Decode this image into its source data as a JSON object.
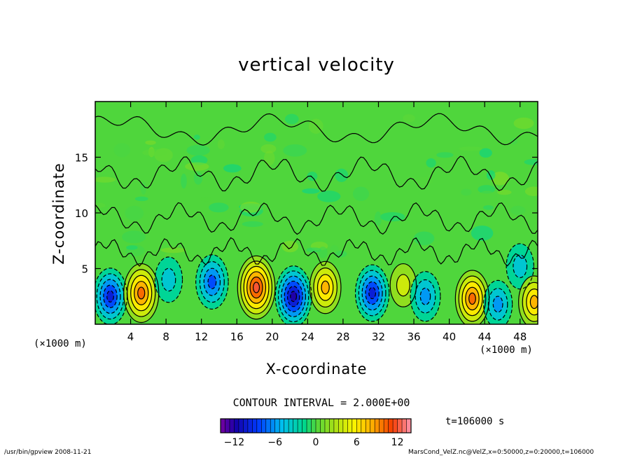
{
  "chart_data": {
    "type": "heatmap",
    "title": "vertical velocity",
    "xlabel": "X-coordinate",
    "ylabel": "Z-coordinate",
    "x_unit": "(×1000 m)",
    "y_unit": "(×1000 m)",
    "xlim": [
      0,
      50
    ],
    "ylim": [
      0,
      20
    ],
    "x_ticks": [
      4,
      8,
      12,
      16,
      20,
      24,
      28,
      32,
      36,
      40,
      44,
      48
    ],
    "y_ticks": [
      5,
      10,
      15
    ],
    "contour_interval_text": "CONTOUR INTERVAL = 2.000E+00",
    "time_text": "t=106000 s",
    "colorbar": {
      "range": [
        -14,
        14
      ],
      "ticks": [
        -12,
        -6,
        0,
        6,
        12
      ]
    },
    "cells": [
      {
        "x": 1.7,
        "z": 2.5,
        "value": -9
      },
      {
        "x": 5.2,
        "z": 2.8,
        "value": 10
      },
      {
        "x": 8.3,
        "z": 4.0,
        "value": -4
      },
      {
        "x": 13.2,
        "z": 3.8,
        "value": -8
      },
      {
        "x": 18.2,
        "z": 3.3,
        "value": 12
      },
      {
        "x": 22.4,
        "z": 2.5,
        "value": -11
      },
      {
        "x": 26.0,
        "z": 3.3,
        "value": 7
      },
      {
        "x": 31.3,
        "z": 2.8,
        "value": -9
      },
      {
        "x": 34.8,
        "z": 3.5,
        "value": 3
      },
      {
        "x": 37.3,
        "z": 2.5,
        "value": -6
      },
      {
        "x": 42.6,
        "z": 2.3,
        "value": 9
      },
      {
        "x": 45.5,
        "z": 1.8,
        "value": -5
      },
      {
        "x": 48.0,
        "z": 5.2,
        "value": -4
      },
      {
        "x": 49.6,
        "z": 2.0,
        "value": 7
      }
    ]
  },
  "footer": {
    "left": "/usr/bin/gpview  2008-11-21",
    "right": "MarsCond_VelZ.nc@VelZ,x=0:50000,z=0:20000,t=106000"
  }
}
